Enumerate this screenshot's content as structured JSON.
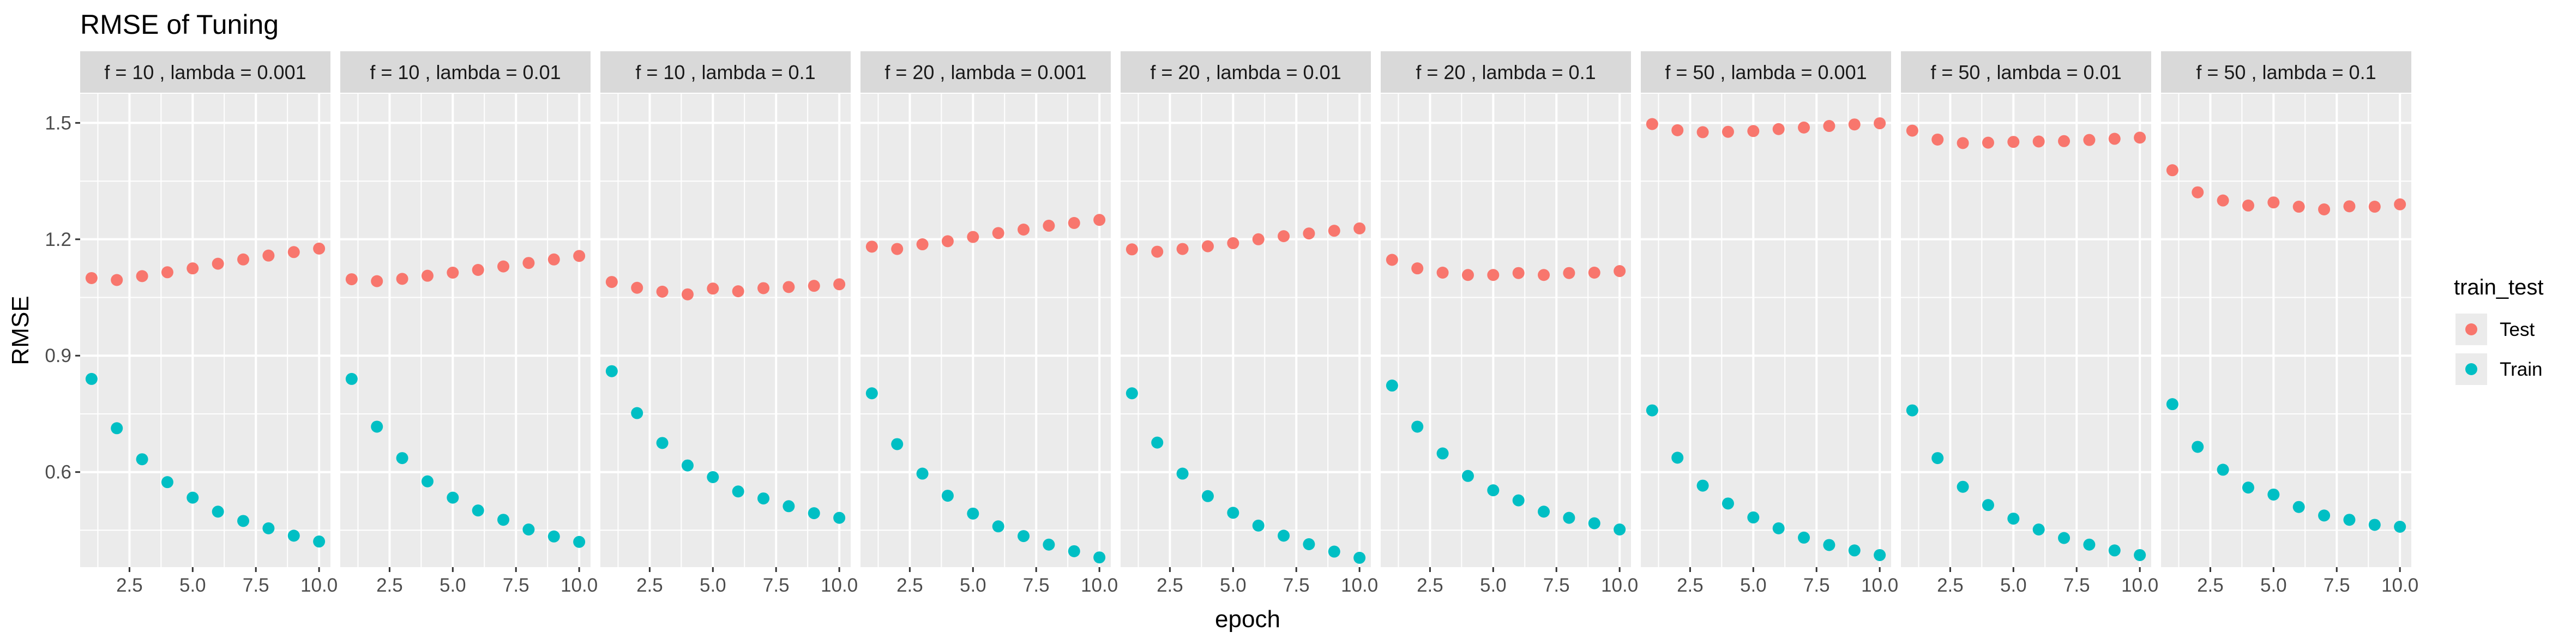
{
  "chart_data": {
    "type": "scatter",
    "title": "RMSE of Tuning",
    "xlabel": "epoch",
    "ylabel": "RMSE",
    "xlim": [
      0.55,
      10.45
    ],
    "ylim": [
      0.355,
      1.575
    ],
    "x_ticks": [
      2.5,
      5.0,
      7.5,
      10.0
    ],
    "x_tick_labels": [
      "2.5",
      "5.0",
      "7.5",
      "10.0"
    ],
    "y_ticks": [
      0.6,
      0.9,
      1.2,
      1.5
    ],
    "y_tick_labels": [
      "0.6",
      "0.9",
      "1.2",
      "1.5"
    ],
    "grid": true,
    "legend": {
      "title": "train_test",
      "position": "right",
      "entries": [
        {
          "label": "Test",
          "color": "#F8766D"
        },
        {
          "label": "Train",
          "color": "#00BFC4"
        }
      ]
    },
    "x": [
      1,
      2,
      3,
      4,
      5,
      6,
      7,
      8,
      9,
      10
    ],
    "panels": [
      {
        "label": "f =  10 , lambda =  0.001",
        "test": [
          1.1,
          1.095,
          1.105,
          1.115,
          1.125,
          1.137,
          1.148,
          1.158,
          1.167,
          1.176
        ],
        "train": [
          0.84,
          0.713,
          0.633,
          0.574,
          0.534,
          0.498,
          0.474,
          0.455,
          0.436,
          0.421
        ]
      },
      {
        "label": "f =  10 , lambda =  0.01",
        "test": [
          1.097,
          1.092,
          1.098,
          1.106,
          1.114,
          1.121,
          1.13,
          1.139,
          1.148,
          1.157
        ],
        "train": [
          0.84,
          0.717,
          0.636,
          0.576,
          0.534,
          0.501,
          0.477,
          0.452,
          0.434,
          0.42
        ]
      },
      {
        "label": "f =  10 , lambda =  0.1",
        "test": [
          1.09,
          1.075,
          1.065,
          1.058,
          1.073,
          1.066,
          1.074,
          1.077,
          1.08,
          1.084
        ],
        "train": [
          0.86,
          0.752,
          0.675,
          0.617,
          0.587,
          0.55,
          0.532,
          0.512,
          0.494,
          0.482
        ]
      },
      {
        "label": "f =  20 , lambda =  0.001",
        "test": [
          1.181,
          1.175,
          1.187,
          1.195,
          1.206,
          1.216,
          1.225,
          1.235,
          1.242,
          1.25
        ],
        "train": [
          0.803,
          0.672,
          0.596,
          0.539,
          0.493,
          0.46,
          0.435,
          0.413,
          0.396,
          0.38
        ]
      },
      {
        "label": "f =  20 , lambda =  0.01",
        "test": [
          1.174,
          1.168,
          1.175,
          1.182,
          1.19,
          1.2,
          1.208,
          1.215,
          1.222,
          1.228
        ],
        "train": [
          0.803,
          0.676,
          0.596,
          0.538,
          0.495,
          0.462,
          0.436,
          0.414,
          0.395,
          0.379
        ]
      },
      {
        "label": "f =  20 , lambda =  0.1",
        "test": [
          1.147,
          1.125,
          1.114,
          1.108,
          1.108,
          1.113,
          1.108,
          1.113,
          1.114,
          1.118
        ],
        "train": [
          0.823,
          0.717,
          0.648,
          0.59,
          0.553,
          0.527,
          0.498,
          0.482,
          0.468,
          0.452
        ]
      },
      {
        "label": "f =  50 , lambda =  0.001",
        "test": [
          1.497,
          1.481,
          1.476,
          1.477,
          1.479,
          1.484,
          1.488,
          1.492,
          1.496,
          1.499
        ],
        "train": [
          0.759,
          0.637,
          0.565,
          0.519,
          0.483,
          0.455,
          0.431,
          0.412,
          0.398,
          0.386
        ]
      },
      {
        "label": "f =  50 , lambda =  0.01",
        "test": [
          1.48,
          1.457,
          1.448,
          1.449,
          1.451,
          1.452,
          1.453,
          1.456,
          1.459,
          1.462
        ],
        "train": [
          0.759,
          0.636,
          0.562,
          0.515,
          0.48,
          0.452,
          0.43,
          0.413,
          0.398,
          0.386
        ]
      },
      {
        "label": "f =  50 , lambda =  0.1",
        "test": [
          1.378,
          1.321,
          1.3,
          1.287,
          1.295,
          1.284,
          1.277,
          1.285,
          1.284,
          1.29
        ],
        "train": [
          0.775,
          0.665,
          0.606,
          0.56,
          0.542,
          0.51,
          0.488,
          0.477,
          0.464,
          0.459
        ]
      }
    ]
  }
}
